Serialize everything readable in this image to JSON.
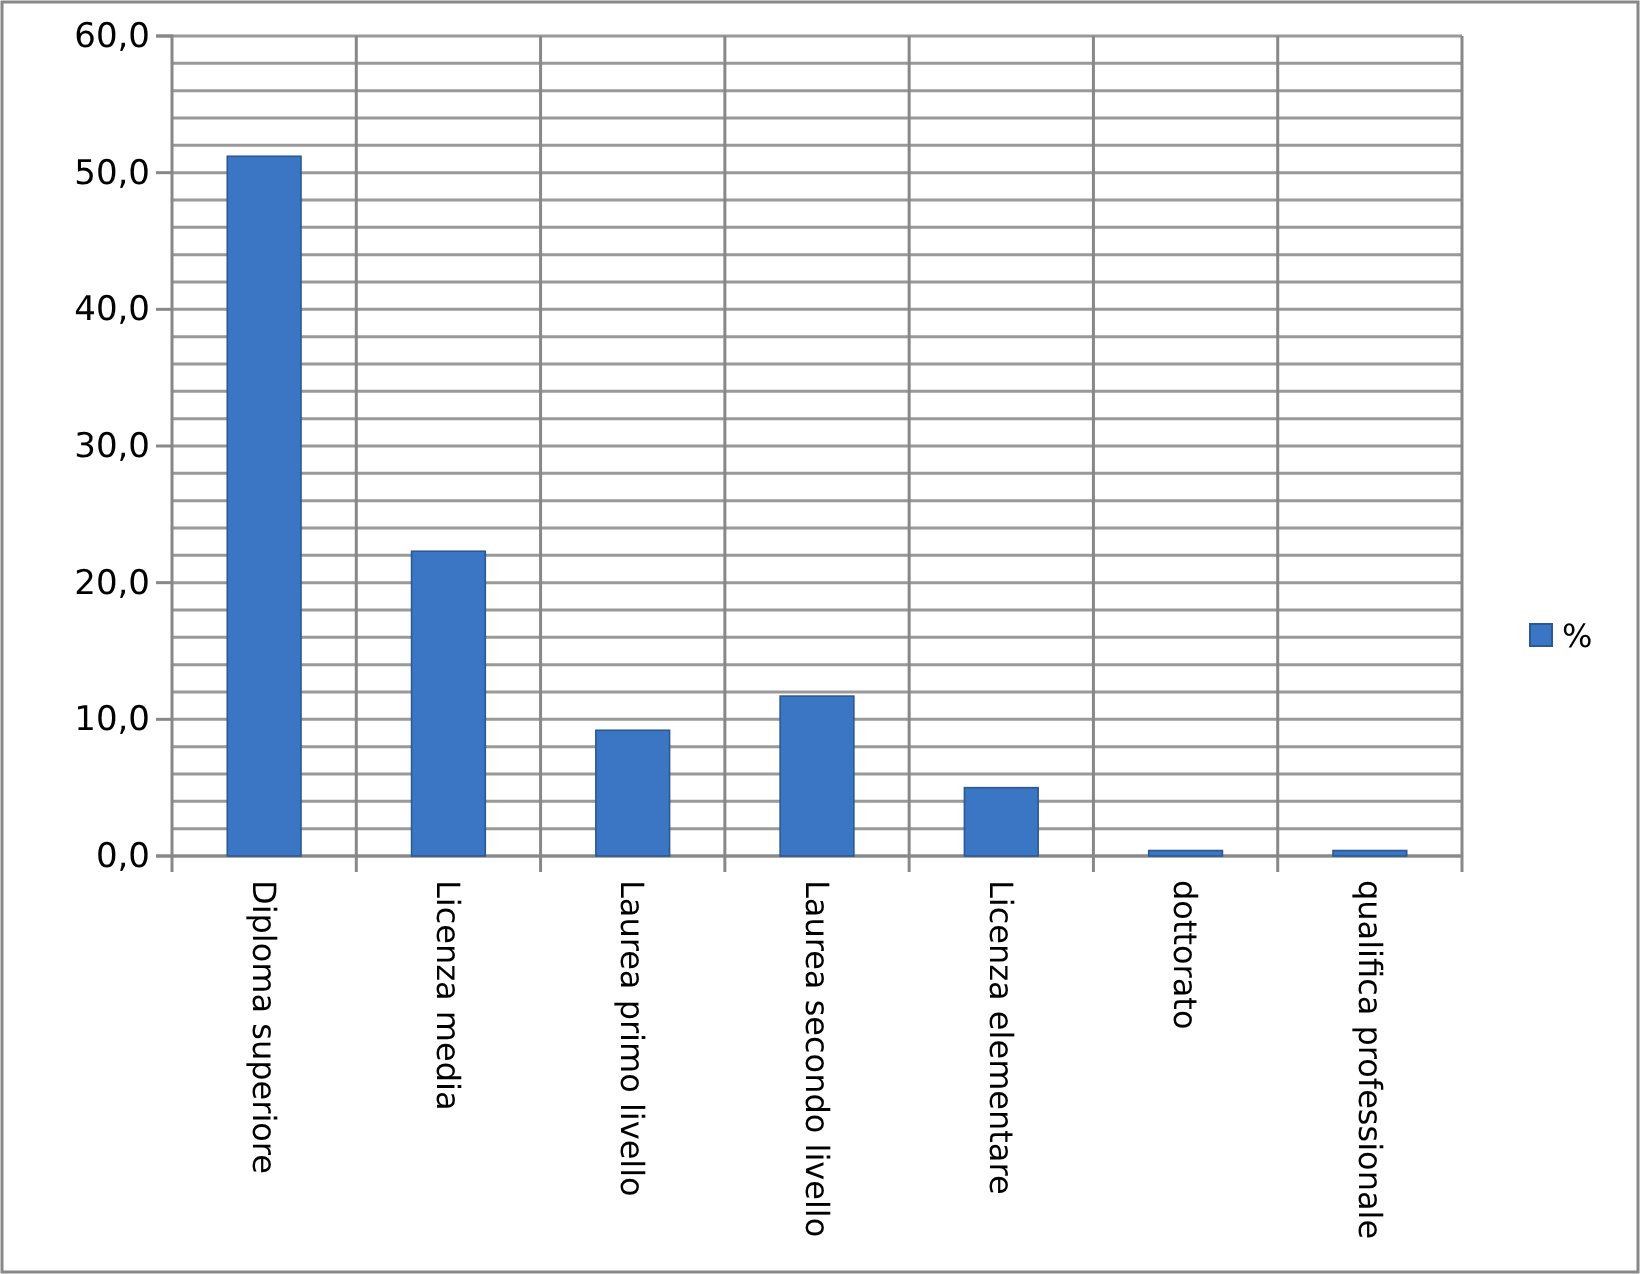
{
  "chart_data": {
    "type": "bar",
    "categories": [
      "Diploma superiore",
      "Licenza media",
      "Laurea primo livello",
      "Laurea secondo livello",
      "Licenza elementare",
      "dottorato",
      "qualifica professionale"
    ],
    "series": [
      {
        "name": "%",
        "color": "#3a76c4",
        "values": [
          51.2,
          22.3,
          9.2,
          11.7,
          5.0,
          0.4,
          0.4
        ]
      }
    ],
    "ylim": [
      0,
      60
    ],
    "yticks": [
      {
        "value": 0,
        "label": "0,0"
      },
      {
        "value": 2,
        "label": null
      },
      {
        "value": 4,
        "label": null
      },
      {
        "value": 6,
        "label": null
      },
      {
        "value": 8,
        "label": null
      },
      {
        "value": 10,
        "label": "10,0"
      },
      {
        "value": 12,
        "label": null
      },
      {
        "value": 14,
        "label": null
      },
      {
        "value": 16,
        "label": null
      },
      {
        "value": 18,
        "label": null
      },
      {
        "value": 20,
        "label": "20,0"
      },
      {
        "value": 22,
        "label": null
      },
      {
        "value": 24,
        "label": null
      },
      {
        "value": 26,
        "label": null
      },
      {
        "value": 28,
        "label": null
      },
      {
        "value": 30,
        "label": "30,0"
      },
      {
        "value": 32,
        "label": null
      },
      {
        "value": 34,
        "label": null
      },
      {
        "value": 36,
        "label": null
      },
      {
        "value": 38,
        "label": null
      },
      {
        "value": 40,
        "label": "40,0"
      },
      {
        "value": 42,
        "label": null
      },
      {
        "value": 44,
        "label": null
      },
      {
        "value": 46,
        "label": null
      },
      {
        "value": 48,
        "label": null
      },
      {
        "value": 50,
        "label": "50,0"
      },
      {
        "value": 52,
        "label": null
      },
      {
        "value": 54,
        "label": null
      },
      {
        "value": 56,
        "label": null
      },
      {
        "value": 58,
        "label": null
      },
      {
        "value": 60,
        "label": "60,0"
      }
    ],
    "grid": true,
    "legend": "right"
  }
}
